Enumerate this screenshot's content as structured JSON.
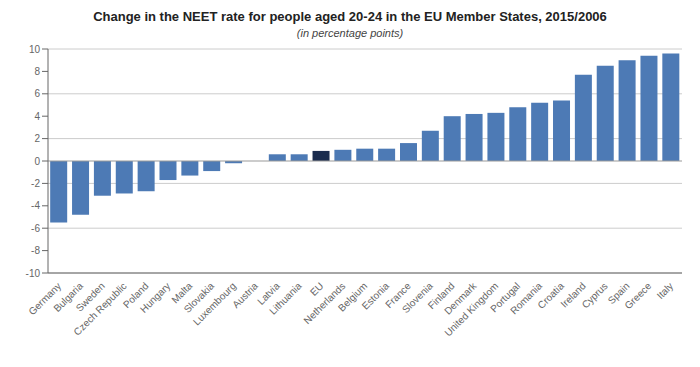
{
  "chart_data": {
    "type": "bar",
    "title": "Change in the NEET rate for people aged 20-24 in the EU Member States, 2015/2006",
    "subtitle": "(in percentage points)",
    "categories": [
      "Germany",
      "Bulgaria",
      "Sweden",
      "Czech Republic",
      "Poland",
      "Hungary",
      "Malta",
      "Slovakia",
      "Luxembourg",
      "Austria",
      "Latvia",
      "Lithuania",
      "EU",
      "Netherlands",
      "Belgium",
      "Estonia",
      "France",
      "Slovenia",
      "Finland",
      "Denmark",
      "United Kingdom",
      "Portugal",
      "Romania",
      "Croatia",
      "Ireland",
      "Cyprus",
      "Spain",
      "Greece",
      "Italy"
    ],
    "values": [
      -5.5,
      -4.8,
      -3.1,
      -2.9,
      -2.7,
      -1.7,
      -1.3,
      -0.9,
      -0.2,
      0.0,
      0.6,
      0.6,
      0.9,
      1.0,
      1.1,
      1.1,
      1.6,
      2.7,
      4.0,
      4.2,
      4.3,
      4.8,
      5.2,
      5.4,
      7.7,
      8.5,
      9.0,
      9.4,
      9.6
    ],
    "colors": [
      "#4d7ab5",
      "#4d7ab5",
      "#4d7ab5",
      "#4d7ab5",
      "#4d7ab5",
      "#4d7ab5",
      "#4d7ab5",
      "#4d7ab5",
      "#4d7ab5",
      "#4d7ab5",
      "#4d7ab5",
      "#4d7ab5",
      "#1a2c4e",
      "#4d7ab5",
      "#4d7ab5",
      "#4d7ab5",
      "#4d7ab5",
      "#4d7ab5",
      "#4d7ab5",
      "#4d7ab5",
      "#4d7ab5",
      "#4d7ab5",
      "#4d7ab5",
      "#4d7ab5",
      "#4d7ab5",
      "#4d7ab5",
      "#4d7ab5",
      "#4d7ab5",
      "#4d7ab5"
    ],
    "ylim": [
      -10,
      10
    ],
    "yticks": [
      -10,
      -8,
      -6,
      -4,
      -2,
      0,
      2,
      4,
      6,
      8,
      10
    ],
    "grid": true
  }
}
